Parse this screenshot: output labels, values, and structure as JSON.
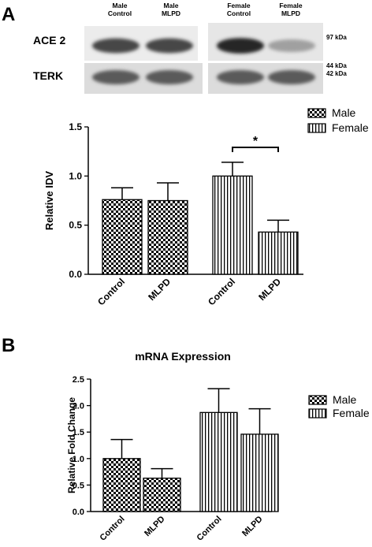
{
  "panel_a": {
    "letter": "A",
    "blot": {
      "lanes": [
        {
          "line1": "Male",
          "line2": "Control"
        },
        {
          "line1": "Male",
          "line2": "MLPD"
        },
        {
          "line1": "Female",
          "line2": "Control"
        },
        {
          "line1": "Female",
          "line2": "MLPD"
        }
      ],
      "rows": [
        {
          "label": "ACE 2",
          "marker": "97 kDa",
          "band_intensity": [
            0.8,
            0.8,
            0.95,
            0.35
          ]
        },
        {
          "label": "TERK",
          "marker_top": "44 kDa",
          "marker_bottom": "42 kDa",
          "band_intensity": [
            0.7,
            0.7,
            0.7,
            0.7
          ]
        }
      ]
    }
  },
  "panel_b": {
    "letter": "B"
  },
  "chart_data": [
    {
      "type": "bar",
      "title": "",
      "xlabel": "",
      "ylabel": "Relative IDV",
      "ylim": [
        0,
        1.5
      ],
      "yticks": [
        "0.0",
        "0.5",
        "1.0",
        "1.5"
      ],
      "categories": [
        "Control",
        "MLPD",
        "Control",
        "MLPD"
      ],
      "groups": [
        "Male",
        "Male",
        "Female",
        "Female"
      ],
      "values": [
        0.76,
        0.75,
        1.0,
        0.43
      ],
      "errors": [
        0.12,
        0.18,
        0.14,
        0.12
      ],
      "legend": [
        {
          "name": "Male",
          "pattern": "checker"
        },
        {
          "name": "Female",
          "pattern": "vertical-stripes"
        }
      ],
      "annotation": {
        "text": "*",
        "between": [
          2,
          3
        ]
      }
    },
    {
      "type": "bar",
      "title": "mRNA Expression",
      "xlabel": "",
      "ylabel": "Relative Fold Change",
      "ylim": [
        0,
        2.5
      ],
      "yticks": [
        "0.0",
        "0.5",
        "1.0",
        "1.5",
        "2.0",
        "2.5"
      ],
      "categories": [
        "Control",
        "MLPD",
        "Control",
        "MLPD"
      ],
      "groups": [
        "Male",
        "Male",
        "Female",
        "Female"
      ],
      "values": [
        1.0,
        0.63,
        1.87,
        1.46
      ],
      "errors": [
        0.36,
        0.18,
        0.45,
        0.48
      ],
      "legend": [
        {
          "name": "Male",
          "pattern": "checker"
        },
        {
          "name": "Female",
          "pattern": "vertical-stripes"
        }
      ]
    }
  ]
}
